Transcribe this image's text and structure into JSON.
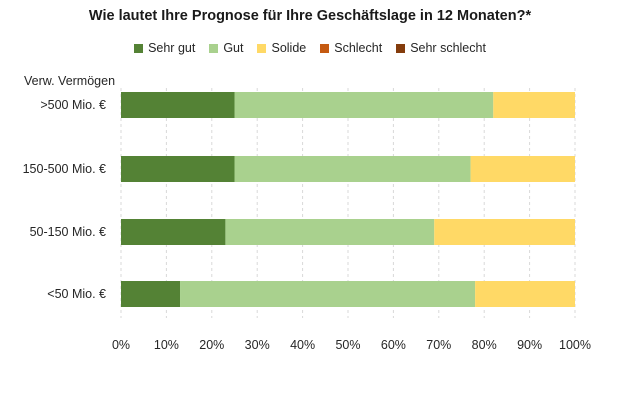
{
  "chart_data": {
    "type": "bar",
    "orientation": "horizontal",
    "stacked": true,
    "title": "Wie lautet Ihre Prognose für Ihre Geschäftslage in 12 Monaten?*",
    "ylabel": "Verw. Vermögen",
    "xlabel": "",
    "categories": [
      ">500 Mio. €",
      "150-500 Mio. €",
      "50-150 Mio. €",
      "<50 Mio. €"
    ],
    "series": [
      {
        "name": "Sehr gut",
        "color": "#548235",
        "values": [
          25,
          25,
          23,
          13
        ]
      },
      {
        "name": "Gut",
        "color": "#a9d18e",
        "values": [
          57,
          52,
          46,
          65
        ]
      },
      {
        "name": "Solide",
        "color": "#ffd966",
        "values": [
          18,
          23,
          31,
          22
        ]
      },
      {
        "name": "Schlecht",
        "color": "#c55a11",
        "values": [
          0,
          0,
          0,
          0
        ]
      },
      {
        "name": "Sehr schlecht",
        "color": "#843c0c",
        "values": [
          0,
          0,
          0,
          0
        ]
      }
    ],
    "xlim": [
      0,
      100
    ],
    "xticks": [
      "0%",
      "10%",
      "20%",
      "30%",
      "40%",
      "50%",
      "60%",
      "70%",
      "80%",
      "90%",
      "100%"
    ],
    "xtick_values": [
      0,
      10,
      20,
      30,
      40,
      50,
      60,
      70,
      80,
      90,
      100
    ],
    "grid": "vertical-dashed",
    "legend": "top"
  }
}
